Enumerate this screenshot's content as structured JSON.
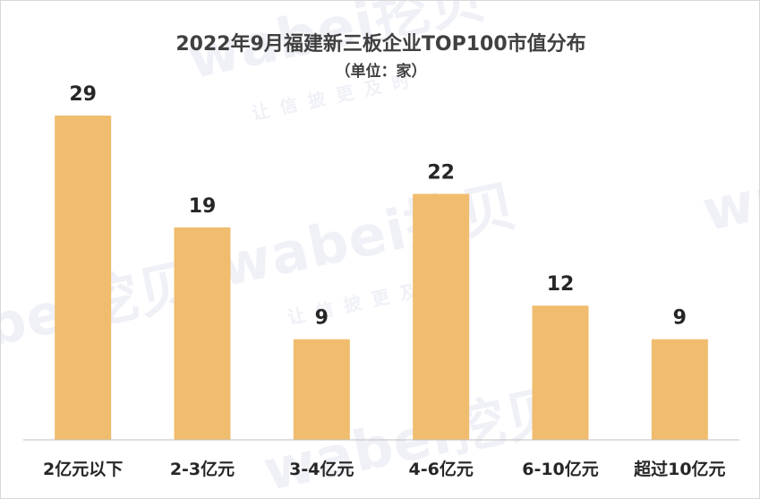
{
  "chart_data": {
    "type": "bar",
    "title": "2022年9月福建新三板企业TOP100市值分布",
    "subtitle": "（单位：家）",
    "categories": [
      "2亿元以下",
      "2-3亿元",
      "3-4亿元",
      "4-6亿元",
      "6-10亿元",
      "超过10亿元"
    ],
    "values": [
      29,
      19,
      9,
      22,
      12,
      9
    ],
    "ylim": [
      0,
      29
    ],
    "grid": false,
    "legend": "none",
    "bar_color": "#F0BC6E"
  },
  "watermark": {
    "brand": "wabei挖贝",
    "slogan": "让信披更及时"
  }
}
